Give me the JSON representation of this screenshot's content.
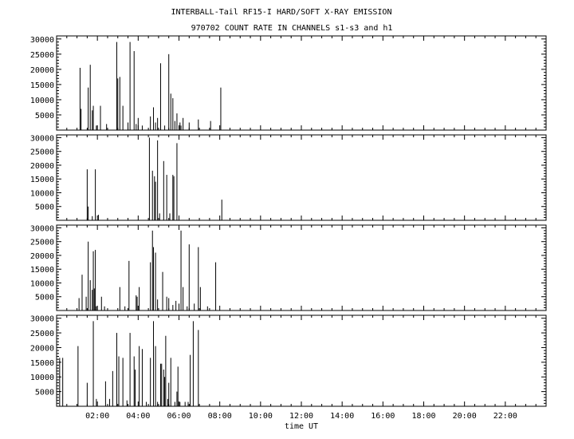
{
  "title_line1": "INTERBALL-Tail RF15-I HARD/SOFT X-RAY EMISSION",
  "title_line2": "970702  COUNT RATE IN CHANNELS s1-s3 and h1",
  "chart_data": {
    "type": "bar",
    "title": "INTERBALL-Tail RF15-I HARD/SOFT X-RAY EMISSION",
    "subtitle": "970702  COUNT RATE IN CHANNELS s1-s3 and h1",
    "xlabel": "time UT",
    "ylabel": "",
    "xlim": [
      0,
      24
    ],
    "ylim": [
      0,
      31000
    ],
    "grid": false,
    "x_tick_labels": [
      "02:00",
      "04:00",
      "06:00",
      "08:00",
      "10:00",
      "12:00",
      "14:00",
      "16:00",
      "18:00",
      "20:00",
      "22:00"
    ],
    "x_tick_values": [
      2,
      4,
      6,
      8,
      10,
      12,
      14,
      16,
      18,
      20,
      22
    ],
    "y_tick_labels": [
      "5000",
      "10000",
      "15000",
      "20000",
      "25000",
      "30000"
    ],
    "y_tick_values": [
      5000,
      10000,
      15000,
      20000,
      25000,
      30000
    ],
    "panels": [
      {
        "x": [
          1.15,
          1.2,
          1.55,
          1.65,
          1.75,
          1.8,
          1.95,
          2.15,
          2.45,
          2.95,
          3.0,
          3.1,
          3.25,
          3.5,
          3.6,
          3.8,
          3.9,
          4.0,
          4.2,
          4.6,
          4.75,
          4.85,
          4.95,
          5.1,
          5.3,
          5.5,
          5.6,
          5.7,
          5.8,
          5.9,
          6.05,
          6.1,
          6.2,
          6.5,
          6.95,
          7.55,
          8.05
        ],
        "values": [
          20500,
          7000,
          14000,
          21500,
          6500,
          8000,
          1500,
          8000,
          2000,
          29000,
          17000,
          17500,
          8000,
          2500,
          29000,
          26000,
          2000,
          4000,
          1500,
          4500,
          7500,
          2500,
          4000,
          22000,
          1500,
          25000,
          12000,
          10500,
          3000,
          5500,
          2500,
          1500,
          4000,
          2500,
          3500,
          3000,
          14000
        ]
      },
      {
        "x": [
          1.5,
          1.55,
          1.75,
          1.9,
          2.05,
          4.55,
          4.7,
          4.8,
          4.85,
          4.95,
          5.05,
          5.25,
          5.4,
          5.55,
          5.7,
          5.75,
          5.9,
          8.1
        ],
        "values": [
          18500,
          5000,
          1500,
          18500,
          2000,
          30000,
          18000,
          16000,
          14000,
          29000,
          2500,
          21500,
          16500,
          2500,
          16500,
          16000,
          28000,
          7500
        ]
      },
      {
        "x": [
          1.1,
          1.25,
          1.45,
          1.55,
          1.65,
          1.75,
          1.8,
          1.85,
          1.9,
          1.95,
          2.2,
          2.35,
          3.1,
          3.35,
          3.55,
          3.9,
          3.95,
          4.05,
          4.6,
          4.7,
          4.75,
          4.85,
          4.95,
          5.2,
          5.4,
          5.5,
          5.7,
          5.85,
          6.0,
          6.1,
          6.2,
          6.4,
          6.5,
          6.75,
          6.95,
          7.05,
          7.4,
          7.8
        ],
        "values": [
          4500,
          13000,
          5000,
          25000,
          11000,
          7500,
          21500,
          8000,
          22000,
          1500,
          5000,
          1500,
          8500,
          1500,
          18000,
          5500,
          5000,
          8500,
          17500,
          29000,
          23000,
          21000,
          4000,
          14000,
          5000,
          4500,
          2000,
          3500,
          2500,
          29000,
          8500,
          1500,
          24000,
          2500,
          23000,
          8500,
          1500,
          17500
        ]
      },
      {
        "x": [
          0.15,
          0.3,
          1.05,
          1.5,
          1.8,
          1.95,
          2.4,
          2.6,
          2.75,
          2.95,
          3.05,
          3.25,
          3.45,
          3.6,
          3.8,
          3.85,
          4.05,
          4.2,
          4.4,
          4.6,
          4.75,
          4.85,
          4.95,
          5.1,
          5.15,
          5.25,
          5.3,
          5.35,
          5.45,
          5.5,
          5.6,
          5.8,
          5.9,
          5.95,
          6.05,
          6.3,
          6.45,
          6.55,
          6.7,
          6.95
        ],
        "values": [
          16500,
          16500,
          20500,
          8000,
          29000,
          2500,
          8500,
          2500,
          12000,
          25000,
          17000,
          16500,
          2000,
          25000,
          17000,
          12500,
          20500,
          19500,
          1500,
          16500,
          29000,
          20500,
          1500,
          14500,
          14500,
          12500,
          10000,
          24000,
          2500,
          8000,
          16500,
          1500,
          5000,
          13500,
          1500,
          1500,
          1500,
          17500,
          29000,
          26000
        ]
      }
    ]
  }
}
